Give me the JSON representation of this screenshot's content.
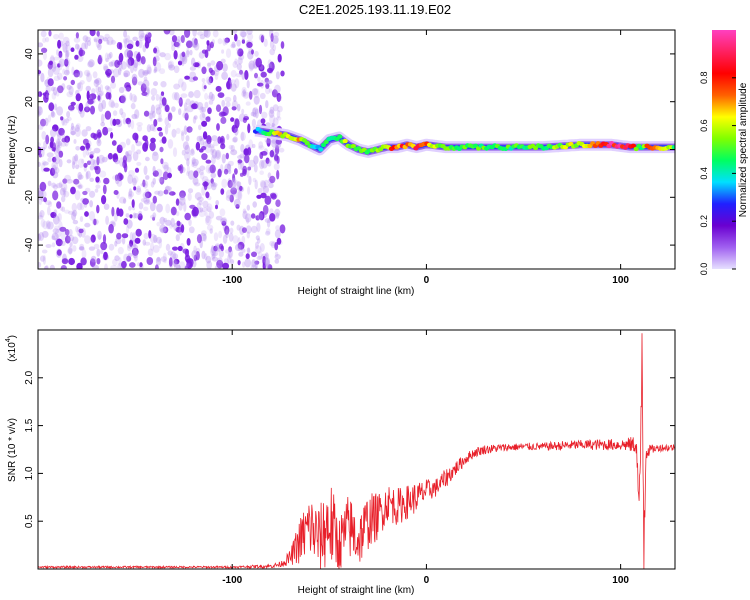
{
  "title": "C2E1.2025.193.11.19.E02",
  "colors": {
    "snr_line": "#e8202a",
    "frame": "#000000",
    "scatter": "#7a1fe0",
    "colorbar_stops": [
      "#e6e0ff",
      "#a060f0",
      "#6a00d0",
      "#2020ff",
      "#00e0ff",
      "#00ff60",
      "#80ff00",
      "#ffff00",
      "#ff6000",
      "#ff0000",
      "#ff2060",
      "#ff40c0"
    ]
  },
  "chart_data": [
    {
      "type": "heatmap",
      "title": "C2E1.2025.193.11.19.E02",
      "xlabel": "Height of straight line (km)",
      "ylabel": "Frequency (Hz)",
      "xlim": [
        -200,
        128
      ],
      "ylim": [
        -50,
        50
      ],
      "xticks": [
        -100,
        0,
        100
      ],
      "xtick_labels": [
        "-100",
        "0",
        "100"
      ],
      "yticks": [
        40,
        20,
        0,
        -20,
        -40
      ],
      "ytick_labels": [
        "40",
        "20",
        "0",
        "-20",
        "-40"
      ],
      "grid": false,
      "colorbar": {
        "label": "Normalized spectral amplitude",
        "range": [
          0,
          1
        ],
        "ticks": [
          0.0,
          0.2,
          0.4,
          0.6,
          0.8
        ],
        "tick_labels": [
          "0.0",
          "0.2",
          "0.4",
          "0.6",
          "0.8"
        ]
      },
      "noise_region_x": [
        -200,
        -80
      ],
      "ridge": {
        "x": [
          -88,
          -80,
          -72,
          -65,
          -60,
          -55,
          -50,
          -45,
          -40,
          -35,
          -30,
          -25,
          -20,
          -15,
          -10,
          -5,
          0,
          10,
          20,
          40,
          60,
          80,
          95,
          105,
          110,
          115,
          128
        ],
        "y": [
          8,
          7,
          6,
          4,
          2,
          0,
          4,
          5,
          2,
          0,
          -1,
          0,
          1,
          1,
          2,
          1,
          2,
          1,
          1,
          1,
          1,
          2,
          2,
          1,
          1,
          1,
          1
        ],
        "amp": [
          0.3,
          0.55,
          0.7,
          0.65,
          0.5,
          0.4,
          0.5,
          0.55,
          0.6,
          0.55,
          0.5,
          0.6,
          0.75,
          0.8,
          0.82,
          0.8,
          0.78,
          0.55,
          0.5,
          0.5,
          0.5,
          0.65,
          0.92,
          0.9,
          0.45,
          0.85,
          0.5
        ]
      }
    },
    {
      "type": "line",
      "xlabel": "Height of straight line (km)",
      "ylabel": "SNR (10 * v/v)",
      "multiplier_label": "(x10",
      "multiplier_exp": "4",
      "xlim": [
        -200,
        128
      ],
      "ylim": [
        0,
        2.5
      ],
      "xticks": [
        -100,
        0,
        100
      ],
      "xtick_labels": [
        "-100",
        "0",
        "100"
      ],
      "yticks": [
        0.5,
        1.0,
        1.5,
        2.0
      ],
      "ytick_labels": [
        "0.5",
        "1.0",
        "1.5",
        "2.0"
      ],
      "grid": false,
      "series": [
        {
          "x": [
            -200,
            -150,
            -100,
            -80,
            -75,
            -70,
            -65,
            -60,
            -55,
            -50,
            -45,
            -40,
            -35,
            -30,
            -25,
            -20,
            -15,
            -10,
            -5,
            0,
            5,
            10,
            15,
            20,
            25,
            30,
            40,
            50,
            60,
            70,
            80,
            90,
            100,
            105,
            108,
            110,
            111,
            112,
            113,
            115,
            118,
            120,
            128
          ],
          "y": [
            0.02,
            0.02,
            0.02,
            0.03,
            0.05,
            0.12,
            0.3,
            0.45,
            0.3,
            0.5,
            0.25,
            0.45,
            0.3,
            0.5,
            0.55,
            0.7,
            0.65,
            0.7,
            0.75,
            0.82,
            0.85,
            0.95,
            1.05,
            1.15,
            1.22,
            1.25,
            1.27,
            1.28,
            1.28,
            1.29,
            1.3,
            1.3,
            1.3,
            1.3,
            1.3,
            0.5,
            2.3,
            0.3,
            1.25,
            1.25,
            1.26,
            1.27,
            1.27
          ],
          "noise": [
            0.01,
            0.01,
            0.01,
            0.02,
            0.03,
            0.08,
            0.25,
            0.35,
            0.35,
            0.5,
            0.3,
            0.35,
            0.3,
            0.3,
            0.25,
            0.2,
            0.2,
            0.18,
            0.16,
            0.12,
            0.1,
            0.1,
            0.08,
            0.06,
            0.05,
            0.05,
            0.04,
            0.04,
            0.04,
            0.05,
            0.05,
            0.06,
            0.06,
            0.08,
            0.1,
            0.6,
            0.6,
            0.6,
            0.15,
            0.05,
            0.04,
            0.04,
            0.04
          ]
        }
      ]
    }
  ]
}
